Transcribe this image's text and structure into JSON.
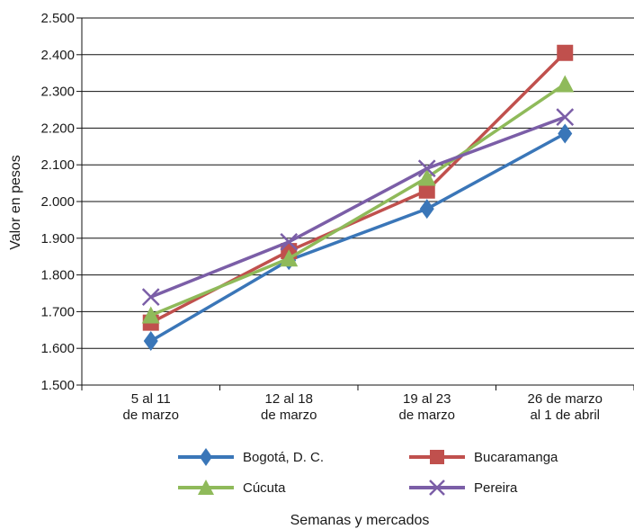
{
  "chart_data": {
    "type": "line",
    "categories": [
      [
        "5 al 11",
        "de marzo"
      ],
      [
        "12 al 18",
        "de marzo"
      ],
      [
        "19 al 23",
        "de marzo"
      ],
      [
        "26 de marzo",
        "al 1 de abril"
      ]
    ],
    "xlabel": "Semanas y mercados",
    "ylabel": "Valor en pesos",
    "ylim": [
      1500,
      2500
    ],
    "yticks": [
      1500,
      1600,
      1700,
      1800,
      1900,
      2000,
      2100,
      2200,
      2300,
      2400,
      2500
    ],
    "ytick_labels": [
      "1.500",
      "1.600",
      "1.700",
      "1.800",
      "1.900",
      "2.000",
      "2.100",
      "2.200",
      "2.300",
      "2.400",
      "2.500"
    ],
    "grid": "horizontal",
    "legend_position": "bottom",
    "series": [
      {
        "name": "Bogotá, D. C.",
        "values": [
          1620,
          1840,
          1980,
          2185
        ],
        "color": "#3a76b8",
        "marker": "diamond"
      },
      {
        "name": "Bucaramanga",
        "values": [
          1670,
          1865,
          2030,
          2405
        ],
        "color": "#c0504d",
        "marker": "square"
      },
      {
        "name": "Cúcuta",
        "values": [
          1690,
          1845,
          2065,
          2320
        ],
        "color": "#8fba5a",
        "marker": "triangle"
      },
      {
        "name": "Pereira",
        "values": [
          1740,
          1890,
          2090,
          2230
        ],
        "color": "#7b5ea7",
        "marker": "x"
      }
    ]
  }
}
